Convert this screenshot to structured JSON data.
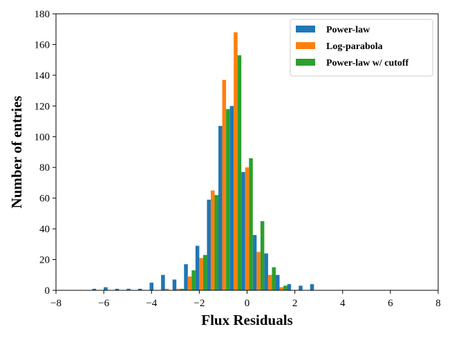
{
  "chart_data": {
    "type": "bar",
    "title": "",
    "xlabel": "Flux Residuals",
    "ylabel": "Number of entries",
    "xlim": [
      -8,
      8
    ],
    "ylim": [
      0,
      180
    ],
    "xticks": [
      -8,
      -6,
      -4,
      -2,
      0,
      2,
      4,
      6,
      8
    ],
    "xtick_labels": [
      "−8",
      "−6",
      "−4",
      "−2",
      "0",
      "2",
      "4",
      "6",
      "8"
    ],
    "yticks": [
      0,
      20,
      40,
      60,
      80,
      100,
      120,
      140,
      160,
      180
    ],
    "ytick_labels": [
      "0",
      "20",
      "40",
      "60",
      "80",
      "100",
      "120",
      "140",
      "160",
      "180"
    ],
    "grid": false,
    "legend_position": "top-right",
    "bin_width": 0.48,
    "bin_centers": [
      -6.24,
      -5.76,
      -5.28,
      -4.8,
      -4.32,
      -3.84,
      -3.36,
      -2.88,
      -2.4,
      -1.92,
      -1.44,
      -0.96,
      -0.48,
      0.0,
      0.48,
      0.96,
      1.44,
      1.92,
      2.4,
      2.88,
      3.36,
      3.84
    ],
    "series": [
      {
        "name": "Power-law",
        "color": "#1f77b4",
        "values": [
          1,
          2,
          1,
          1,
          1,
          5,
          10,
          7,
          17,
          29,
          59,
          107,
          120,
          77,
          36,
          24,
          10,
          4,
          3,
          4,
          0,
          0
        ]
      },
      {
        "name": "Log-parabola",
        "color": "#ff7f0e",
        "values": [
          0,
          0,
          0,
          0,
          0,
          0,
          1,
          1,
          9,
          21,
          65,
          137,
          168,
          80,
          25,
          10,
          2,
          0,
          0,
          0,
          0,
          0
        ]
      },
      {
        "name": "Power-law w/ cutoff",
        "color": "#2ca02c",
        "values": [
          0,
          0,
          0,
          0,
          0,
          0,
          0,
          1,
          13,
          23,
          62,
          118,
          153,
          86,
          45,
          15,
          3,
          0,
          0,
          0,
          0,
          0
        ]
      }
    ]
  }
}
